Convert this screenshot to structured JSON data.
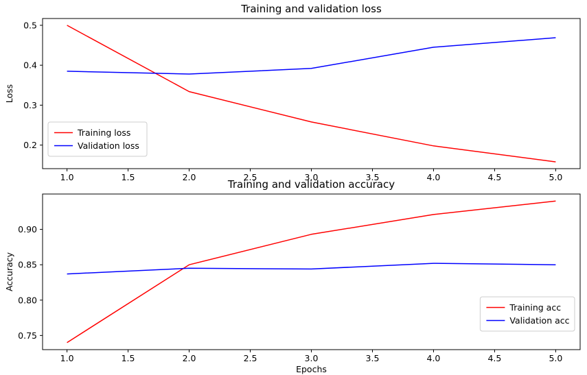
{
  "chart_data": [
    {
      "type": "line",
      "title": "Training and validation loss",
      "xlabel": "",
      "ylabel": "Loss",
      "x": [
        1.0,
        2.0,
        3.0,
        4.0,
        5.0
      ],
      "series": [
        {
          "name": "Training loss",
          "color": "#ff0000",
          "values": [
            0.5,
            0.334,
            0.258,
            0.198,
            0.158
          ]
        },
        {
          "name": "Validation loss",
          "color": "#0000ff",
          "values": [
            0.385,
            0.378,
            0.392,
            0.445,
            0.469
          ]
        }
      ],
      "xlim": [
        0.8,
        5.2
      ],
      "ylim": [
        0.141,
        0.517
      ],
      "xticks": [
        1.0,
        1.5,
        2.0,
        2.5,
        3.0,
        3.5,
        4.0,
        4.5,
        5.0
      ],
      "xtick_labels": [
        "1.0",
        "1.5",
        "2.0",
        "2.5",
        "3.0",
        "3.5",
        "4.0",
        "4.5",
        "5.0"
      ],
      "yticks": [
        0.2,
        0.3,
        0.4,
        0.5
      ],
      "ytick_labels": [
        "0.2",
        "0.3",
        "0.4",
        "0.5"
      ],
      "grid": false,
      "legend": {
        "position": "lower-left",
        "entries": [
          "Training loss",
          "Validation loss"
        ]
      }
    },
    {
      "type": "line",
      "title": "Training and validation accuracy",
      "xlabel": "Epochs",
      "ylabel": "Accuracy",
      "x": [
        1.0,
        2.0,
        3.0,
        4.0,
        5.0
      ],
      "series": [
        {
          "name": "Training acc",
          "color": "#ff0000",
          "values": [
            0.74,
            0.85,
            0.893,
            0.921,
            0.94
          ]
        },
        {
          "name": "Validation acc",
          "color": "#0000ff",
          "values": [
            0.837,
            0.845,
            0.844,
            0.852,
            0.85
          ]
        }
      ],
      "xlim": [
        0.8,
        5.2
      ],
      "ylim": [
        0.73,
        0.95
      ],
      "xticks": [
        1.0,
        1.5,
        2.0,
        2.5,
        3.0,
        3.5,
        4.0,
        4.5,
        5.0
      ],
      "xtick_labels": [
        "1.0",
        "1.5",
        "2.0",
        "2.5",
        "3.0",
        "3.5",
        "4.0",
        "4.5",
        "5.0"
      ],
      "yticks": [
        0.75,
        0.8,
        0.85,
        0.9
      ],
      "ytick_labels": [
        "0.75",
        "0.80",
        "0.85",
        "0.90"
      ],
      "grid": false,
      "legend": {
        "position": "lower-right",
        "entries": [
          "Training acc",
          "Validation acc"
        ]
      }
    }
  ],
  "colors": {
    "background": "#ffffff",
    "axes": "#000000",
    "legend_border": "#cccccc",
    "training_series": "#ff0000",
    "validation_series": "#0000ff"
  }
}
